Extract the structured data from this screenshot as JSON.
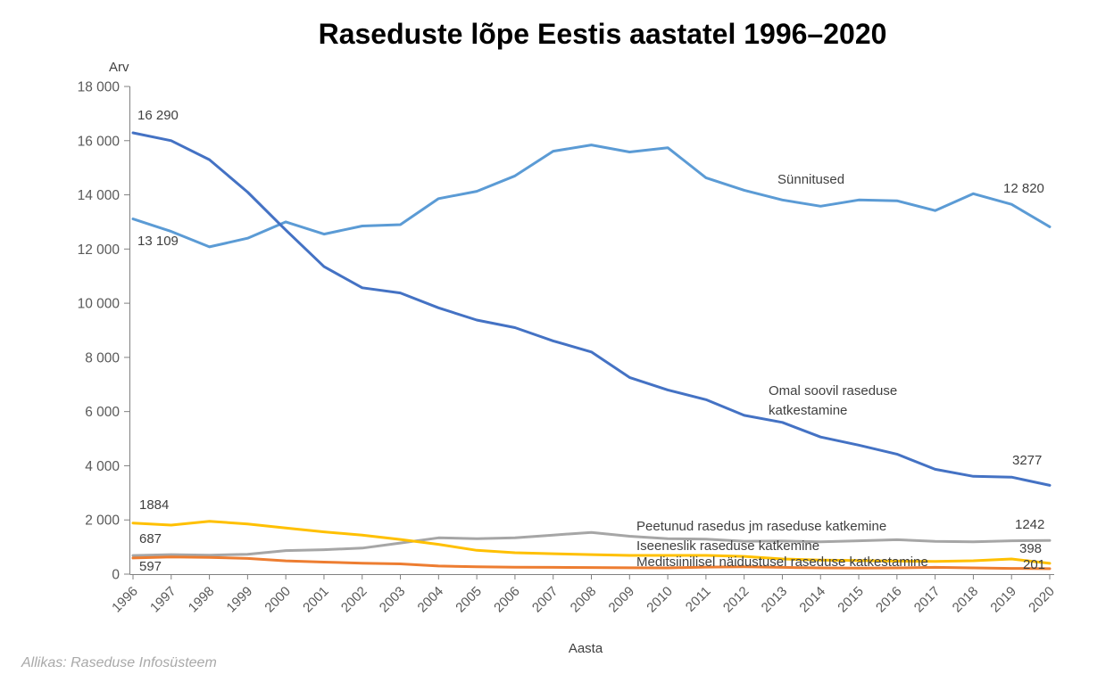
{
  "source_text": "Allikas: Raseduse Infosüsteem",
  "chart_data": {
    "type": "line",
    "title": "Raseduste lõpe Eestis aastatel 1996–2020",
    "xlabel": "Aasta",
    "ylabel": "Arv",
    "ylim": [
      0,
      18000
    ],
    "grid": false,
    "legend_position": "inline-labels",
    "axis_color": "#808080",
    "tick_label_color": "#595959",
    "y_ticks": [
      {
        "value": 0,
        "label": "0"
      },
      {
        "value": 2000,
        "label": "2 000"
      },
      {
        "value": 4000,
        "label": "4 000"
      },
      {
        "value": 6000,
        "label": "6 000"
      },
      {
        "value": 8000,
        "label": "8 000"
      },
      {
        "value": 10000,
        "label": "10 000"
      },
      {
        "value": 12000,
        "label": "12 000"
      },
      {
        "value": 14000,
        "label": "14 000"
      },
      {
        "value": 16000,
        "label": "16 000"
      },
      {
        "value": 18000,
        "label": "18 000"
      }
    ],
    "categories": [
      "1996",
      "1997",
      "1998",
      "1999",
      "2000",
      "2001",
      "2002",
      "2003",
      "2004",
      "2005",
      "2006",
      "2007",
      "2008",
      "2009",
      "2010",
      "2011",
      "2012",
      "2013",
      "2014",
      "2015",
      "2016",
      "2017",
      "2018",
      "2019",
      "2020"
    ],
    "series": [
      {
        "name": "Sünnitused",
        "slug": "sunnitused",
        "color": "#5B9BD5",
        "values": [
          13109,
          12650,
          12080,
          12400,
          13000,
          12550,
          12850,
          12900,
          13860,
          14130,
          14700,
          15610,
          15840,
          15580,
          15740,
          14630,
          14170,
          13810,
          13580,
          13810,
          13780,
          13420,
          14040,
          13650,
          12820
        ]
      },
      {
        "name": "Omal soovil raseduse katkestamine",
        "slug": "omal-soovil",
        "color": "#4472C4",
        "values": [
          16290,
          16000,
          15300,
          14100,
          12700,
          11350,
          10570,
          10380,
          9830,
          9380,
          9100,
          8610,
          8200,
          7260,
          6800,
          6440,
          5860,
          5600,
          5060,
          4760,
          4430,
          3870,
          3610,
          3580,
          3277
        ]
      },
      {
        "name": "Peetunud rasedus jm raseduse katkemine",
        "slug": "peetunud",
        "color": "#A6A6A6",
        "values": [
          687,
          720,
          700,
          730,
          870,
          900,
          960,
          1150,
          1340,
          1310,
          1340,
          1440,
          1540,
          1400,
          1310,
          1290,
          1215,
          1220,
          1190,
          1230,
          1270,
          1210,
          1190,
          1230,
          1242
        ]
      },
      {
        "name": "Meditsiinilisel näidustusel raseduse katkestamine",
        "slug": "meditsiiniline",
        "color": "#ED7D31",
        "values": [
          597,
          635,
          620,
          580,
          490,
          445,
          405,
          380,
          300,
          270,
          255,
          250,
          245,
          235,
          230,
          260,
          270,
          250,
          230,
          225,
          230,
          250,
          230,
          210,
          201
        ]
      },
      {
        "name": "Iseeneslik raseduse katkemine",
        "slug": "iseeneslik",
        "color": "#FFC000",
        "values": [
          1884,
          1810,
          1950,
          1850,
          1700,
          1560,
          1440,
          1280,
          1100,
          880,
          790,
          755,
          720,
          690,
          690,
          690,
          655,
          560,
          520,
          500,
          480,
          470,
          495,
          560,
          398
        ]
      }
    ]
  },
  "series_labels": {
    "sunnitused": "Sünnitused",
    "omal_soovil": "Omal soovil raseduse\nkatkestamine",
    "peetunud": "Peetunud rasedus jm raseduse katkemine",
    "iseeneslik": "Iseeneslik raseduse katkemine",
    "meditsiiniline": "Meditsiinilisel näidustusel raseduse katkestamine"
  },
  "annotations": {
    "omal_start": "16 290",
    "sunnitused_start": "13 109",
    "sunnitused_end": "12 820",
    "omal_end": "3277",
    "iseeneslik_start": "1884",
    "peetunud_start": "687",
    "meditsiiniline_start": "597",
    "peetunud_end": "1242",
    "iseeneslik_end": "398",
    "meditsiiniline_end": "201"
  }
}
